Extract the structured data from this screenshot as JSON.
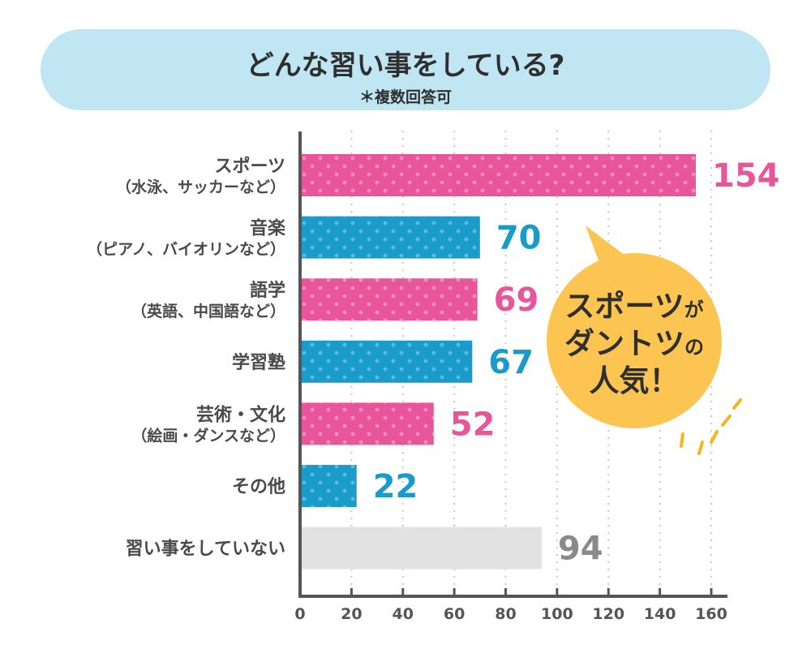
{
  "header": {
    "title": "どんな習い事をしている?",
    "subtitle": "＊複数回答可"
  },
  "callout": {
    "line1_main": "スポーツ",
    "line1_suffix": "が",
    "line2_main": "ダントツ",
    "line2_suffix": "の",
    "line3": "人気！"
  },
  "colors": {
    "header_bg": "#bfe6f2",
    "pink": "#e9559a",
    "blue": "#1a9ccb",
    "gray": "#e2e2e2",
    "gray_text": "#8a8a8a",
    "bubble": "#fcc451",
    "rays": "#f3b71c",
    "axis": "#555555",
    "grid": "#cfcfcf"
  },
  "chart_data": {
    "type": "bar",
    "orientation": "horizontal",
    "title": "どんな習い事をしている?",
    "subtitle": "＊複数回答可",
    "categories": [
      {
        "label": "スポーツ",
        "sub": "（水泳、サッカーなど）",
        "value": 154,
        "color": "pink"
      },
      {
        "label": "音楽",
        "sub": "（ピアノ、バイオリンなど）",
        "value": 70,
        "color": "blue"
      },
      {
        "label": "語学",
        "sub": "（英語、中国語など）",
        "value": 69,
        "color": "pink"
      },
      {
        "label": "学習塾",
        "sub": "",
        "value": 67,
        "color": "blue"
      },
      {
        "label": "芸術・文化",
        "sub": "（絵画・ダンスなど）",
        "value": 52,
        "color": "pink"
      },
      {
        "label": "その他",
        "sub": "",
        "value": 22,
        "color": "blue"
      },
      {
        "label": "習い事をしていない",
        "sub": "",
        "value": 94,
        "color": "gray"
      }
    ],
    "xlim": [
      0,
      160
    ],
    "xticks": [
      "0",
      "20",
      "40",
      "60",
      "80",
      "100",
      "120",
      "140",
      "160"
    ],
    "grid": true
  }
}
